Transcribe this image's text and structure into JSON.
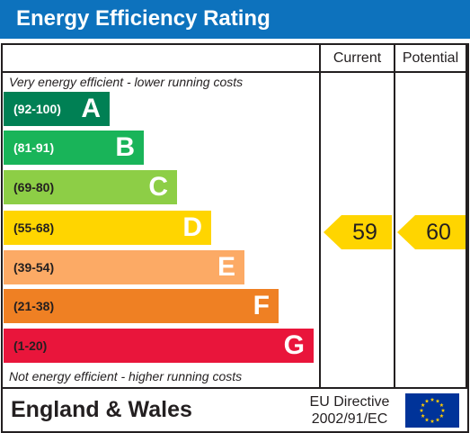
{
  "header": {
    "title": "Energy Efficiency Rating"
  },
  "columns": {
    "current": "Current",
    "potential": "Potential"
  },
  "notes": {
    "top": "Very energy efficient - lower running costs",
    "bottom": "Not energy efficient - higher running costs"
  },
  "bands": [
    {
      "range": "(92-100)",
      "letter": "A",
      "color": "#008054",
      "text_color": "#ffffff"
    },
    {
      "range": "(81-91)",
      "letter": "B",
      "color": "#19b459",
      "text_color": "#ffffff"
    },
    {
      "range": "(69-80)",
      "letter": "C",
      "color": "#8dce46",
      "text_color": "#231f20"
    },
    {
      "range": "(55-68)",
      "letter": "D",
      "color": "#ffd500",
      "text_color": "#231f20"
    },
    {
      "range": "(39-54)",
      "letter": "E",
      "color": "#fcaa65",
      "text_color": "#231f20"
    },
    {
      "range": "(21-38)",
      "letter": "F",
      "color": "#ef8023",
      "text_color": "#231f20"
    },
    {
      "range": "(1-20)",
      "letter": "G",
      "color": "#e9153b",
      "text_color": "#231f20"
    }
  ],
  "ratings": {
    "current": {
      "value": "59",
      "color": "#ffd500"
    },
    "potential": {
      "value": "60",
      "color": "#ffd500"
    }
  },
  "footer": {
    "region": "England & Wales",
    "directive_line1": "EU Directive",
    "directive_line2": "2002/91/EC",
    "flag_icon": "eu-flag-icon",
    "flag_color": "#003399",
    "star_color": "#ffcc00"
  }
}
